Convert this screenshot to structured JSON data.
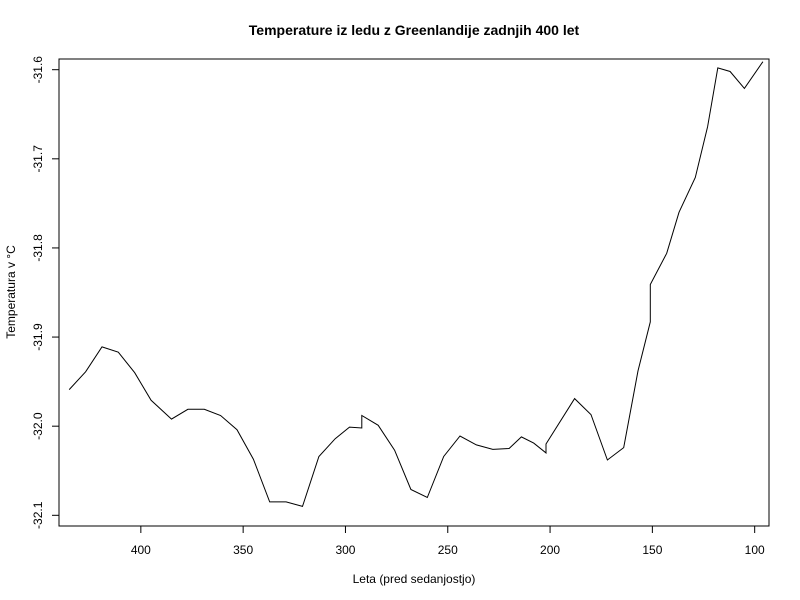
{
  "chart_data": {
    "type": "line",
    "title": "Temperature iz ledu z Greenlandije zadnjih 400 let",
    "xlabel": "Leta (pred sedanjostjo)",
    "ylabel": "Temperatura v °C",
    "xlim": [
      440,
      93
    ],
    "ylim": [
      -32.112,
      -31.588
    ],
    "x_reversed": true,
    "grid": false,
    "x_ticks": [
      400,
      350,
      300,
      250,
      200,
      150,
      100
    ],
    "x_tick_labels": [
      "400",
      "350",
      "300",
      "250",
      "200",
      "150",
      "100"
    ],
    "y_ticks": [
      -32.1,
      -32.0,
      -31.9,
      -31.8,
      -31.7,
      -31.6
    ],
    "y_tick_labels": [
      "-32.1",
      "-32.0",
      "-31.9",
      "-31.8",
      "-31.7",
      "-31.6"
    ],
    "series": [
      {
        "color": "#000000",
        "x": [
          435,
          427,
          419,
          411,
          403,
          395,
          385,
          377,
          369,
          361,
          353,
          345,
          337,
          329,
          321,
          313,
          305,
          298,
          292,
          292,
          284,
          276,
          268,
          260,
          252,
          244,
          236,
          228,
          220,
          214,
          208,
          202,
          202,
          188,
          180,
          172,
          164,
          157,
          151,
          151,
          143,
          137,
          129,
          123,
          118,
          112,
          105,
          96
        ],
        "y": [
          -31.959,
          -31.939,
          -31.911,
          -31.917,
          -31.94,
          -31.971,
          -31.992,
          -31.981,
          -31.981,
          -31.988,
          -32.004,
          -32.037,
          -32.085,
          -32.085,
          -32.09,
          -32.034,
          -32.014,
          -32.001,
          -32.002,
          -31.988,
          -31.999,
          -32.027,
          -32.071,
          -32.08,
          -32.034,
          -32.011,
          -32.021,
          -32.026,
          -32.025,
          -32.012,
          -32.019,
          -32.03,
          -32.02,
          -31.969,
          -31.987,
          -32.038,
          -32.024,
          -31.938,
          -31.883,
          -31.841,
          -31.806,
          -31.76,
          -31.721,
          -31.664,
          -31.598,
          -31.602,
          -31.621,
          -31.591
        ]
      }
    ]
  }
}
